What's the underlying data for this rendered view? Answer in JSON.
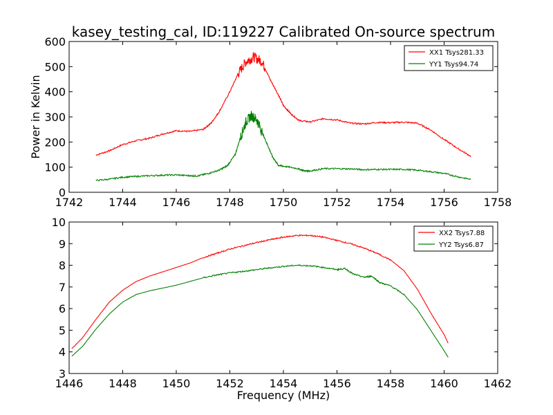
{
  "chart_data": [
    {
      "type": "line",
      "title": "kasey_testing_cal, ID:119227 Calibrated On-source spectrum",
      "xlabel": "",
      "ylabel": "Power in Kelvin",
      "xlim": [
        1742,
        1758
      ],
      "ylim": [
        0,
        600
      ],
      "xticks": [
        1742,
        1744,
        1746,
        1748,
        1750,
        1752,
        1754,
        1756,
        1758
      ],
      "yticks": [
        0,
        100,
        200,
        300,
        400,
        500,
        600
      ],
      "legend_position": "top-right",
      "series": [
        {
          "name": "XX1 Tsys281.33",
          "color": "#ff0000",
          "noise_region": [
            1748.3,
            1749.3
          ],
          "noise_amplitude": 20,
          "points": [
            [
              1743.0,
              148
            ],
            [
              1743.5,
              165
            ],
            [
              1744.0,
              190
            ],
            [
              1744.5,
              205
            ],
            [
              1745.0,
              215
            ],
            [
              1745.5,
              232
            ],
            [
              1746.0,
              245
            ],
            [
              1746.5,
              242
            ],
            [
              1747.0,
              250
            ],
            [
              1747.3,
              275
            ],
            [
              1747.6,
              320
            ],
            [
              1748.0,
              400
            ],
            [
              1748.3,
              470
            ],
            [
              1748.6,
              520
            ],
            [
              1748.9,
              538
            ],
            [
              1749.2,
              520
            ],
            [
              1749.5,
              450
            ],
            [
              1749.8,
              390
            ],
            [
              1750.0,
              345
            ],
            [
              1750.3,
              310
            ],
            [
              1750.6,
              285
            ],
            [
              1751.0,
              280
            ],
            [
              1751.5,
              293
            ],
            [
              1752.0,
              288
            ],
            [
              1752.5,
              275
            ],
            [
              1753.0,
              272
            ],
            [
              1753.5,
              278
            ],
            [
              1754.0,
              277
            ],
            [
              1754.5,
              279
            ],
            [
              1755.0,
              275
            ],
            [
              1755.5,
              248
            ],
            [
              1756.0,
              210
            ],
            [
              1756.5,
              175
            ],
            [
              1757.0,
              143
            ]
          ]
        },
        {
          "name": "YY1 Tsys94.74",
          "color": "#008000",
          "noise_region": [
            1748.4,
            1749.2
          ],
          "noise_amplitude": 20,
          "points": [
            [
              1743.0,
              47
            ],
            [
              1743.5,
              52
            ],
            [
              1744.0,
              60
            ],
            [
              1744.5,
              63
            ],
            [
              1745.0,
              66
            ],
            [
              1745.5,
              68
            ],
            [
              1746.0,
              69
            ],
            [
              1746.5,
              66
            ],
            [
              1746.8,
              65
            ],
            [
              1747.2,
              75
            ],
            [
              1747.6,
              88
            ],
            [
              1747.9,
              105
            ],
            [
              1748.2,
              150
            ],
            [
              1748.4,
              220
            ],
            [
              1748.6,
              280
            ],
            [
              1748.8,
              305
            ],
            [
              1749.0,
              290
            ],
            [
              1749.2,
              240
            ],
            [
              1749.4,
              190
            ],
            [
              1749.6,
              140
            ],
            [
              1749.8,
              108
            ],
            [
              1750.0,
              104
            ],
            [
              1750.5,
              95
            ],
            [
              1750.8,
              85
            ],
            [
              1751.0,
              85
            ],
            [
              1751.5,
              94
            ],
            [
              1752.0,
              94
            ],
            [
              1752.5,
              93
            ],
            [
              1753.0,
              90
            ],
            [
              1753.5,
              91
            ],
            [
              1754.0,
              91
            ],
            [
              1754.5,
              91
            ],
            [
              1755.0,
              88
            ],
            [
              1755.5,
              82
            ],
            [
              1756.0,
              75
            ],
            [
              1756.5,
              62
            ],
            [
              1757.0,
              51
            ]
          ]
        }
      ]
    },
    {
      "type": "line",
      "title": "",
      "xlabel": "Frequency (MHz)",
      "ylabel": "",
      "xlim": [
        1446,
        1462
      ],
      "ylim": [
        3,
        10
      ],
      "xticks": [
        1446,
        1448,
        1450,
        1452,
        1454,
        1456,
        1458,
        1460,
        1462
      ],
      "yticks": [
        3,
        4,
        5,
        6,
        7,
        8,
        9,
        10
      ],
      "legend_position": "top-right",
      "series": [
        {
          "name": "XX2 Tsys7.88",
          "color": "#ff0000",
          "noise_region": [
            1451.0,
            1458.0
          ],
          "noise_amplitude": 0.03,
          "points": [
            [
              1446.1,
              4.15
            ],
            [
              1446.5,
              4.65
            ],
            [
              1447.0,
              5.5
            ],
            [
              1447.5,
              6.3
            ],
            [
              1448.0,
              6.85
            ],
            [
              1448.5,
              7.25
            ],
            [
              1449.0,
              7.5
            ],
            [
              1449.5,
              7.7
            ],
            [
              1450.0,
              7.9
            ],
            [
              1450.5,
              8.1
            ],
            [
              1451.0,
              8.35
            ],
            [
              1451.5,
              8.55
            ],
            [
              1452.0,
              8.75
            ],
            [
              1452.5,
              8.9
            ],
            [
              1453.0,
              9.05
            ],
            [
              1453.5,
              9.18
            ],
            [
              1454.0,
              9.3
            ],
            [
              1454.5,
              9.38
            ],
            [
              1455.0,
              9.38
            ],
            [
              1455.5,
              9.3
            ],
            [
              1456.0,
              9.15
            ],
            [
              1456.5,
              9.0
            ],
            [
              1457.0,
              8.8
            ],
            [
              1457.5,
              8.55
            ],
            [
              1458.0,
              8.25
            ],
            [
              1458.5,
              7.75
            ],
            [
              1459.0,
              6.9
            ],
            [
              1459.5,
              5.8
            ],
            [
              1460.0,
              4.8
            ],
            [
              1460.15,
              4.4
            ]
          ]
        },
        {
          "name": "YY2 Tsys6.87",
          "color": "#008000",
          "noise_region": [
            1451.0,
            1458.5
          ],
          "noise_amplitude": 0.03,
          "points": [
            [
              1446.1,
              3.8
            ],
            [
              1446.5,
              4.25
            ],
            [
              1447.0,
              5.05
            ],
            [
              1447.5,
              5.75
            ],
            [
              1448.0,
              6.3
            ],
            [
              1448.5,
              6.65
            ],
            [
              1449.0,
              6.82
            ],
            [
              1449.5,
              6.95
            ],
            [
              1450.0,
              7.08
            ],
            [
              1450.5,
              7.25
            ],
            [
              1451.0,
              7.42
            ],
            [
              1451.5,
              7.55
            ],
            [
              1452.0,
              7.65
            ],
            [
              1452.5,
              7.72
            ],
            [
              1453.0,
              7.8
            ],
            [
              1453.5,
              7.88
            ],
            [
              1454.0,
              7.95
            ],
            [
              1454.5,
              8.0
            ],
            [
              1455.0,
              7.98
            ],
            [
              1455.5,
              7.9
            ],
            [
              1456.0,
              7.8
            ],
            [
              1456.3,
              7.85
            ],
            [
              1456.6,
              7.6
            ],
            [
              1457.0,
              7.45
            ],
            [
              1457.3,
              7.5
            ],
            [
              1457.6,
              7.2
            ],
            [
              1458.0,
              7.05
            ],
            [
              1458.5,
              6.65
            ],
            [
              1459.0,
              5.95
            ],
            [
              1459.5,
              5.0
            ],
            [
              1460.0,
              4.05
            ],
            [
              1460.15,
              3.75
            ]
          ]
        }
      ]
    }
  ]
}
